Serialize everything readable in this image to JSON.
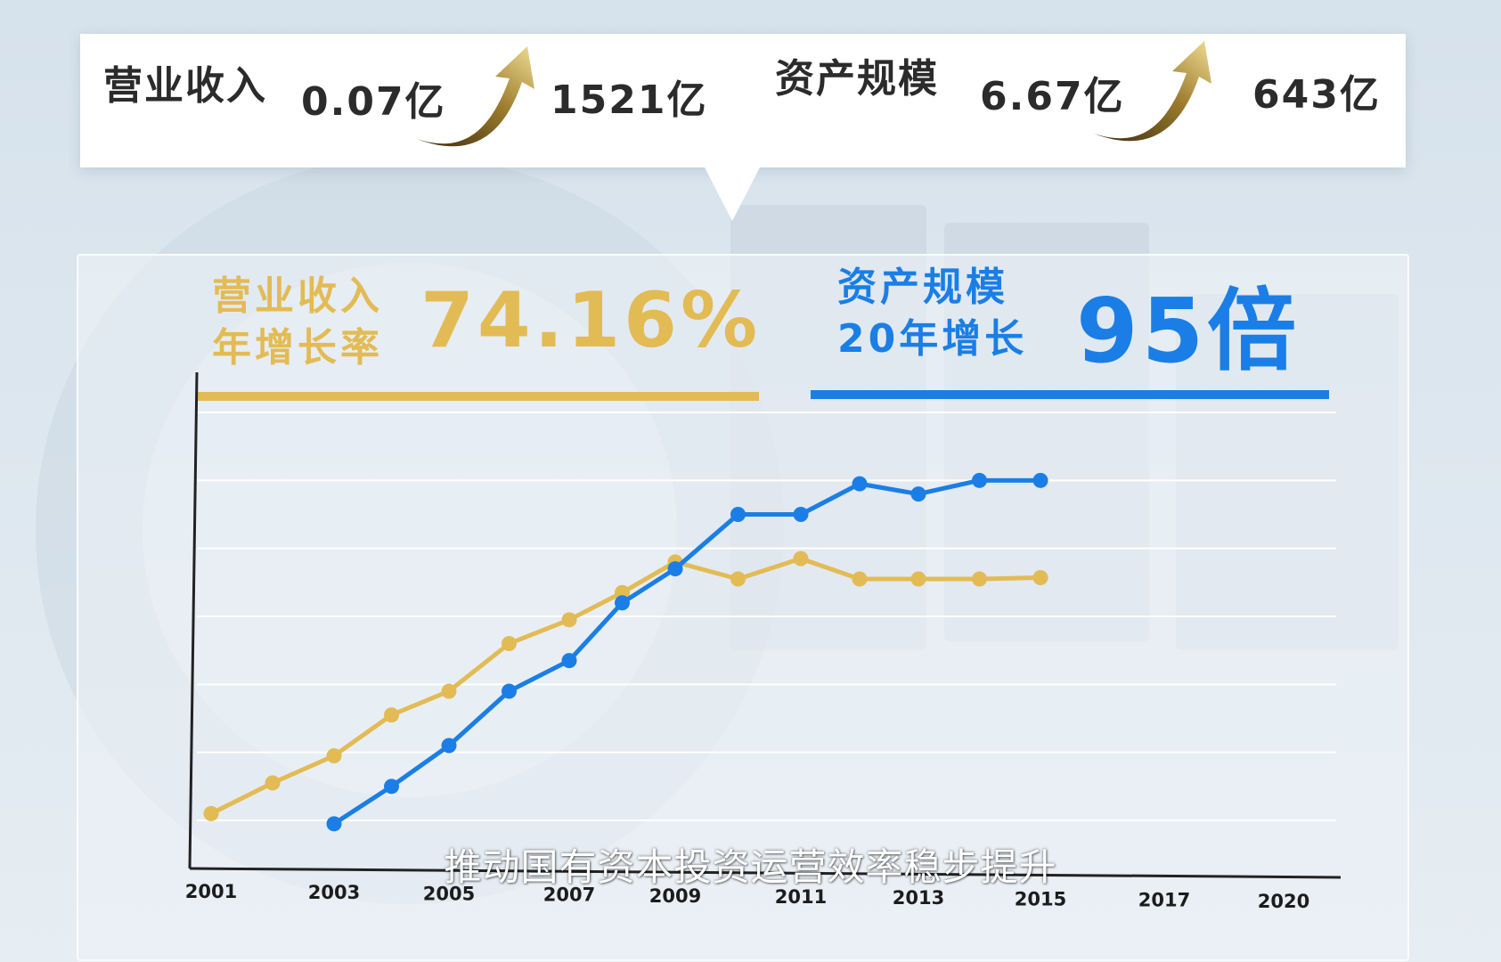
{
  "banner": {
    "revenue_label": "营业收入",
    "revenue_from": "0.07亿",
    "revenue_to": "1521亿",
    "assets_label": "资产规模",
    "assets_from": "6.67亿",
    "assets_to": "643亿"
  },
  "highlights": {
    "revenue_line1": "营业收入",
    "revenue_line2": "年增长率",
    "revenue_value": "74.16%",
    "assets_line1": "资产规模",
    "assets_line2": "20年增长",
    "assets_value": "95倍"
  },
  "colors": {
    "revenue": "#e3bb55",
    "assets": "#1a7ee6",
    "arrow": "#9a7a2c"
  },
  "subtitle": "推动国有资本投资运营效率稳步提升",
  "icons": [
    "rising-arrow-icon"
  ],
  "chart_data": {
    "type": "line",
    "x_tick_labels": [
      "2001",
      "2003",
      "2005",
      "2007",
      "2009",
      "2011",
      "2013",
      "2015",
      "2017",
      "2020"
    ],
    "ylim": [
      0,
      6
    ],
    "grid": true,
    "legend": "none",
    "series": [
      {
        "key": "revenue",
        "x": [
          2001,
          2002,
          2003,
          2004,
          2005,
          2006,
          2007,
          2008,
          2009,
          2010,
          2011,
          2012,
          2013,
          2014,
          2015
        ],
        "values": [
          0.1,
          0.55,
          0.95,
          1.55,
          1.9,
          2.6,
          2.95,
          3.35,
          3.8,
          3.55,
          3.85,
          3.55,
          3.55,
          3.55,
          3.57
        ]
      },
      {
        "key": "assets",
        "x": [
          2003,
          2004,
          2005,
          2006,
          2007,
          2008,
          2009,
          2010,
          2011,
          2012,
          2013,
          2014,
          2015
        ],
        "values": [
          -0.05,
          0.5,
          1.1,
          1.9,
          2.35,
          3.2,
          3.7,
          4.5,
          4.5,
          4.95,
          4.8,
          5.0,
          5.0
        ]
      }
    ]
  }
}
